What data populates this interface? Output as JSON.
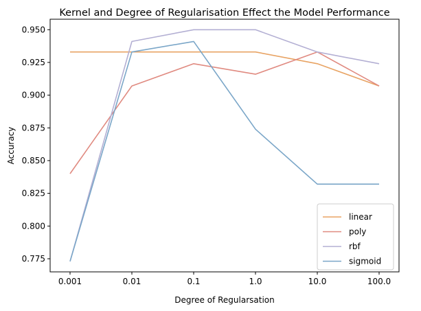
{
  "chart_data": {
    "type": "line",
    "title": "Kernel and Degree of Regularisation Effect the Model Performance",
    "xlabel": "Degree of Regularsation",
    "ylabel": "Accuracy",
    "categories": [
      "0.001",
      "0.01",
      "0.1",
      "1.0",
      "10.0",
      "100.0"
    ],
    "ylim": [
      0.765,
      0.958
    ],
    "yticks": [
      0.775,
      0.8,
      0.825,
      0.85,
      0.875,
      0.9,
      0.925,
      0.95
    ],
    "ytick_labels": [
      "0.775",
      "0.800",
      "0.825",
      "0.850",
      "0.875",
      "0.900",
      "0.925",
      "0.950"
    ],
    "grid": false,
    "legend_position": "lower-right",
    "series": [
      {
        "name": "linear",
        "color": "#E8A363",
        "values": [
          0.933,
          0.933,
          0.933,
          0.933,
          0.924,
          0.907
        ]
      },
      {
        "name": "poly",
        "color": "#E08A80",
        "values": [
          0.84,
          0.907,
          0.924,
          0.916,
          0.933,
          0.907
        ]
      },
      {
        "name": "rbf",
        "color": "#B3AFD3",
        "values": [
          0.773,
          0.941,
          0.95,
          0.95,
          0.933,
          0.924
        ]
      },
      {
        "name": "sigmoid",
        "color": "#7AA6C8",
        "values": [
          0.773,
          0.933,
          0.941,
          0.874,
          0.832,
          0.832
        ]
      }
    ]
  }
}
